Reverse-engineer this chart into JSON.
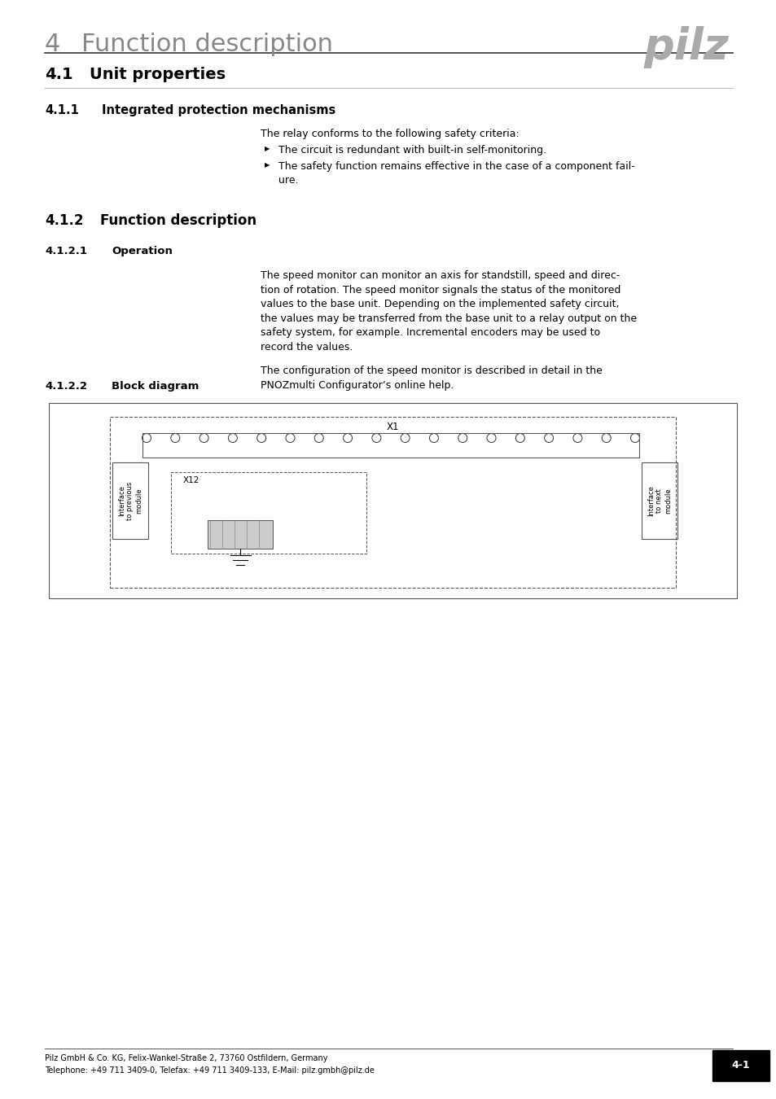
{
  "bg_color": "#ffffff",
  "page_width": 9.54,
  "page_height": 13.5,
  "chapter_number": "4",
  "chapter_title": "Function description",
  "logo_text": "pilz",
  "section_41": "4.1",
  "section_41_title": "Unit properties",
  "section_411": "4.1.1",
  "section_411_title": "Integrated protection mechanisms",
  "section_411_para": "The relay conforms to the following safety criteria:",
  "section_411_bullet1": "The circuit is redundant with built-in self-monitoring.",
  "section_411_bullet2": "The safety function remains effective in the case of a component fail-\nure.",
  "section_412": "4.1.2",
  "section_412_title": "Function description",
  "section_4121": "4.1.2.1",
  "section_4121_title": "Operation",
  "section_4121_para1": "The speed monitor can monitor an axis for standstill, speed and direc-\ntion of rotation. The speed monitor signals the status of the monitored\nvalues to the base unit. Depending on the implemented safety circuit,\nthe values may be transferred from the base unit to a relay output on the\nsafety system, for example. Incremental encoders may be used to\nrecord the values.",
  "section_4121_para2": "The configuration of the speed monitor is described in detail in the\nPNOZmulti Configurator’s online help.",
  "section_4122": "4.1.2.2",
  "section_4122_title": "Block diagram",
  "footer_line1": "Pilz GmbH & Co. KG, Felix-Wankel-Straße 2, 73760 Ostfildern, Germany",
  "footer_line2": "Telephone: +49 711 3409-0, Telefax: +49 711 3409-133, E-Mail: pilz.gmbh@pilz.de",
  "page_number": "4-1",
  "text_color": "#000000",
  "gray_color": "#999999",
  "light_gray": "#cccccc",
  "dark_gray": "#555555",
  "header_gray": "#888888"
}
